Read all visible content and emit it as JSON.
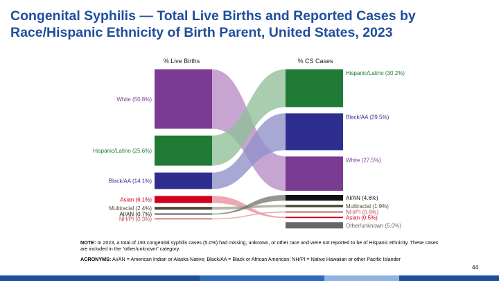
{
  "title_lines": [
    "Congenital Syphilis — Total Live Births and Reported Cases by",
    "Race/Hispanic Ethnicity of Birth Parent, United States, 2023"
  ],
  "note": {
    "label": "NOTE:",
    "text": "In 2023, a total of 193 congenital syphilis cases (5.0%) had missing, unknown, or other race and were not reported to be of Hispanic ethnicity. These cases are included in the “other/unknown” category."
  },
  "acronyms": {
    "label": "ACRONYMS:",
    "text": "AI/AN = American Indian or Alaska Native; Black/AA = Black or African American; NH/PI = Native Hawaiian or other Pacific Islander"
  },
  "page_number": "44",
  "chart_data": {
    "type": "sankey",
    "left_header": "% Live Births",
    "right_header": "% CS Cases",
    "left": [
      {
        "key": "white",
        "label": "White (50.8%)",
        "value": 50.8,
        "color": "#7b3b93"
      },
      {
        "key": "hispanic",
        "label": "Hispanic/Latino (25.6%)",
        "value": 25.6,
        "color": "#1f7a35"
      },
      {
        "key": "black",
        "label": "Black/AA (14.1%)",
        "value": 14.1,
        "color": "#2e2e8f"
      },
      {
        "key": "asian",
        "label": "Asian (6.1%)",
        "value": 6.1,
        "color": "#d2001f"
      },
      {
        "key": "multiracial",
        "label": "Multiracial (2.4%)",
        "value": 2.4,
        "color": "#4a4a32"
      },
      {
        "key": "aian",
        "label": "AI/AN (0.7%)",
        "value": 0.7,
        "color": "#111111"
      },
      {
        "key": "nhpi",
        "label": "NH/PI (0.3%)",
        "value": 0.3,
        "color": "#b8524a"
      }
    ],
    "right": [
      {
        "key": "hispanic",
        "label": "Hispanic/Latino (30.2%)",
        "value": 30.2,
        "color": "#1f7a35"
      },
      {
        "key": "black",
        "label": "Black/AA (29.5%)",
        "value": 29.5,
        "color": "#2e2e8f"
      },
      {
        "key": "white",
        "label": "White (27.5%)",
        "value": 27.5,
        "color": "#7b3b93"
      },
      {
        "key": "aian",
        "label": "AI/AN (4.6%)",
        "value": 4.6,
        "color": "#111111"
      },
      {
        "key": "multiracial",
        "label": "Multiracial (1.9%)",
        "value": 1.9,
        "color": "#4a4a32"
      },
      {
        "key": "nhpi",
        "label": "NH/PI (0.8%)",
        "value": 0.8,
        "color": "#b8524a"
      },
      {
        "key": "asian",
        "label": "Asian (0.5%)",
        "value": 0.5,
        "color": "#d2001f"
      },
      {
        "key": "other",
        "label": "Other/unknown (5.0%)",
        "value": 5.0,
        "color": "#666666"
      }
    ],
    "flow_colors": {
      "white": "#b98bc6",
      "hispanic": "#8fbf98",
      "black": "#8f8fc9",
      "asian": "#e8909c",
      "multiracial": "#a3a393",
      "aian": "#777777",
      "nhpi": "#d9a29d"
    }
  },
  "footer_colors": [
    "#1f4e9c",
    "#2f6bbd",
    "#8fb3e0",
    "#1f4e9c"
  ]
}
